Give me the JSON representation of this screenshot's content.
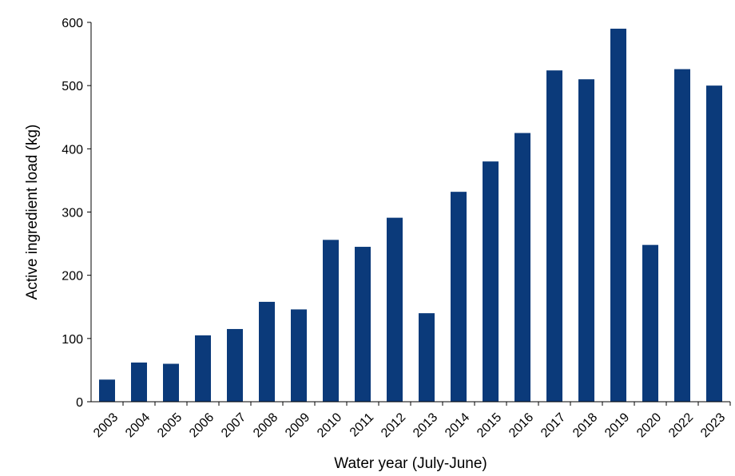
{
  "chart_data": {
    "type": "bar",
    "title": "",
    "xlabel": "Water year (July-June)",
    "ylabel": "Active ingredient load (kg)",
    "categories": [
      "2003",
      "2004",
      "2005",
      "2006",
      "2007",
      "2008",
      "2009",
      "2010",
      "2011",
      "2012",
      "2013",
      "2014",
      "2015",
      "2016",
      "2017",
      "2018",
      "2019",
      "2020",
      "2022",
      "2023"
    ],
    "values": [
      35,
      62,
      60,
      105,
      115,
      158,
      146,
      256,
      245,
      291,
      140,
      332,
      380,
      425,
      524,
      510,
      590,
      248,
      526,
      500
    ],
    "ylim": [
      0,
      600
    ],
    "yticks": [
      "0",
      "100",
      "200",
      "300",
      "400",
      "500",
      "600"
    ],
    "grid": false,
    "legend": "none",
    "bar_color": "#0b3a7a"
  }
}
